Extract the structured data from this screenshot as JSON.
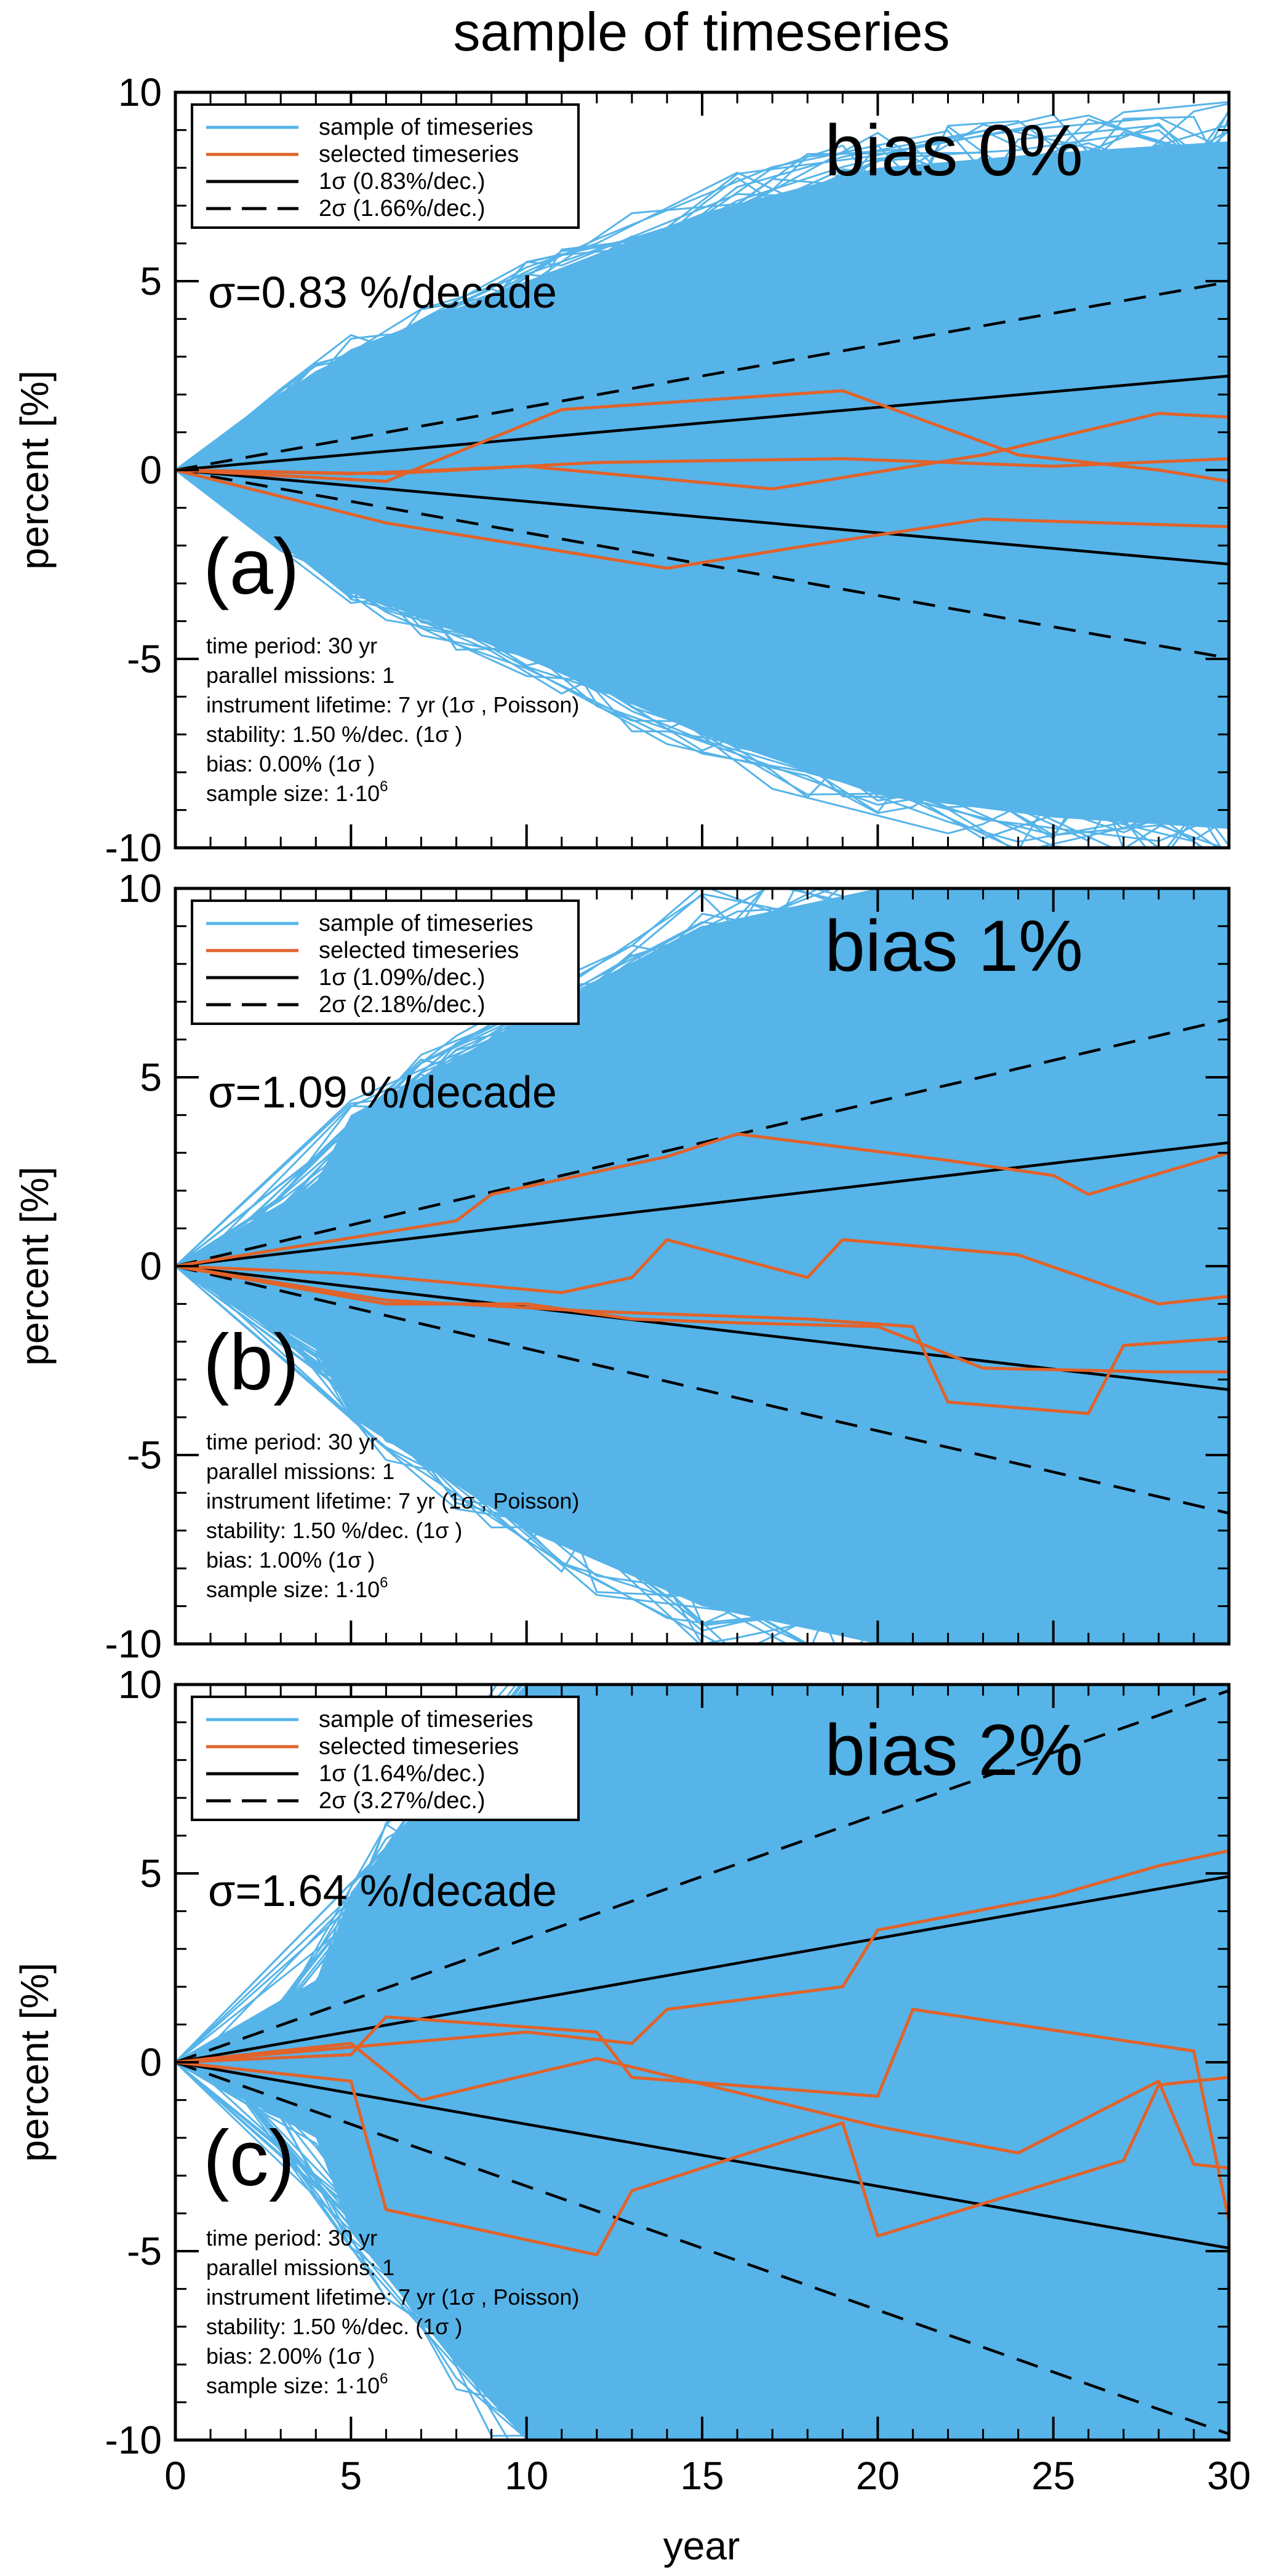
{
  "title": "sample of timeseries",
  "xlabel": "year",
  "colors": {
    "sample": "#56b4e9",
    "selected": "#e1622a",
    "sigma": "#000000",
    "background": "#ffffff"
  },
  "legend": {
    "sample": "sample of timeseries",
    "selected": "selected timeseries"
  },
  "info_labels": {
    "time_period": "time period: 30 yr",
    "parallel_missions": "parallel missions: 1",
    "instrument_lifetime": "instrument lifetime: 7 yr (1σ , Poisson)",
    "stability": "stability: 1.50 %/dec. (1σ )",
    "sample_size_prefix": "sample size: 1·10",
    "sample_size_exp": "6"
  },
  "chart_data": [
    {
      "type": "line",
      "panel_label": "(a)",
      "bias_label": "bias 0%",
      "sigma_label": "σ=0.83 %/decade",
      "bias_info": "bias: 0.00% (1σ )",
      "legend_1sigma": "1σ  (0.83%/dec.)",
      "legend_2sigma": "2σ  (1.66%/dec.)",
      "ylabel": "percent [%]",
      "xlim": [
        0,
        30
      ],
      "ylim": [
        -10,
        10
      ],
      "xticks": [
        0,
        5,
        10,
        15,
        20,
        25,
        30
      ],
      "yticks": [
        -10,
        -5,
        0,
        5,
        10
      ],
      "sigma_slope_per_decade": 0.83,
      "sample_envelope": {
        "x": [
          0,
          5,
          10,
          15,
          20,
          25,
          30
        ],
        "upper": [
          0,
          3.2,
          5.0,
          6.8,
          8.0,
          8.4,
          8.7
        ],
        "lower": [
          0,
          -3.2,
          -5.0,
          -7.0,
          -8.6,
          -9.2,
          -9.5
        ]
      },
      "selected_series": [
        {
          "x": [
            0,
            6,
            11,
            19,
            24,
            28,
            30
          ],
          "y": [
            0,
            -0.3,
            1.6,
            2.1,
            0.4,
            0.0,
            -0.3
          ]
        },
        {
          "x": [
            0,
            5,
            10,
            17,
            23,
            28,
            30
          ],
          "y": [
            0,
            -0.1,
            0.1,
            -0.5,
            0.4,
            1.5,
            1.4
          ]
        },
        {
          "x": [
            0,
            6,
            12,
            19,
            25,
            30
          ],
          "y": [
            0,
            -0.1,
            0.2,
            0.3,
            0.1,
            0.3
          ]
        },
        {
          "x": [
            0,
            6,
            14,
            18,
            23,
            30
          ],
          "y": [
            0,
            -1.4,
            -2.6,
            -2.0,
            -1.3,
            -1.5
          ]
        }
      ]
    },
    {
      "type": "line",
      "panel_label": "(b)",
      "bias_label": "bias 1%",
      "sigma_label": "σ=1.09 %/decade",
      "bias_info": "bias: 1.00% (1σ )",
      "legend_1sigma": "1σ  (1.09%/dec.)",
      "legend_2sigma": "2σ  (2.18%/dec.)",
      "ylabel": "percent [%]",
      "xlim": [
        0,
        30
      ],
      "ylim": [
        -10,
        10
      ],
      "xticks": [
        0,
        5,
        10,
        15,
        20,
        25,
        30
      ],
      "yticks": [
        -10,
        -5,
        0,
        5,
        10
      ],
      "sigma_slope_per_decade": 1.09,
      "sample_envelope": {
        "x": [
          0,
          4,
          5,
          10,
          15,
          20,
          25,
          30
        ],
        "upper": [
          0,
          2.2,
          4.0,
          6.5,
          9.0,
          10,
          10,
          10
        ],
        "lower": [
          0,
          -2.2,
          -4.0,
          -7.0,
          -9.0,
          -10,
          -10,
          -10
        ]
      },
      "selected_series": [
        {
          "x": [
            0,
            8,
            9,
            14,
            16,
            22,
            25,
            26,
            30
          ],
          "y": [
            0,
            1.2,
            1.9,
            2.9,
            3.5,
            2.8,
            2.4,
            1.9,
            3.0
          ]
        },
        {
          "x": [
            0,
            5,
            11,
            13,
            14,
            18,
            19,
            24,
            28,
            30
          ],
          "y": [
            0,
            -0.2,
            -0.7,
            -0.3,
            0.7,
            -0.3,
            0.7,
            0.3,
            -1.0,
            -0.8
          ]
        },
        {
          "x": [
            0,
            6,
            10,
            13,
            16,
            20,
            23,
            28,
            30
          ],
          "y": [
            0,
            -1.0,
            -1.0,
            -1.4,
            -1.5,
            -1.6,
            -2.7,
            -2.8,
            -2.8
          ]
        },
        {
          "x": [
            0,
            6,
            12,
            18,
            21,
            22,
            26,
            27,
            30
          ],
          "y": [
            0,
            -0.9,
            -1.2,
            -1.4,
            -1.6,
            -3.6,
            -3.9,
            -2.1,
            -1.9
          ]
        }
      ]
    },
    {
      "type": "line",
      "panel_label": "(c)",
      "bias_label": "bias 2%",
      "sigma_label": "σ=1.64 %/decade",
      "bias_info": "bias: 2.00% (1σ )",
      "legend_1sigma": "1σ  (1.64%/dec.)",
      "legend_2sigma": "2σ  (3.27%/dec.)",
      "ylabel": "percent [%]",
      "xlim": [
        0,
        30
      ],
      "ylim": [
        -10,
        10
      ],
      "xticks": [
        0,
        5,
        10,
        15,
        20,
        25,
        30
      ],
      "yticks": [
        -10,
        -5,
        0,
        5,
        10
      ],
      "sigma_slope_per_decade": 1.64,
      "sample_envelope": {
        "x": [
          0,
          4,
          5,
          8,
          10,
          15,
          20,
          25,
          30
        ],
        "upper": [
          0,
          2.0,
          4.5,
          8.0,
          10,
          10,
          10,
          10,
          10
        ],
        "lower": [
          0,
          -2.0,
          -4.5,
          -8.0,
          -10,
          -10,
          -10,
          -10,
          -10
        ]
      },
      "selected_series": [
        {
          "x": [
            0,
            10,
            13,
            14,
            19,
            20,
            25,
            28,
            30
          ],
          "y": [
            0,
            0.8,
            0.5,
            1.4,
            2.0,
            3.5,
            4.4,
            5.2,
            5.6
          ]
        },
        {
          "x": [
            0,
            5,
            6,
            12,
            13,
            20,
            21,
            29,
            30
          ],
          "y": [
            0,
            0.2,
            1.2,
            0.8,
            -0.4,
            -0.9,
            1.4,
            0.3,
            -4.2
          ]
        },
        {
          "x": [
            0,
            5,
            7,
            12,
            20,
            24,
            28,
            29,
            30
          ],
          "y": [
            0,
            0.5,
            -1.0,
            0.1,
            -1.7,
            -2.4,
            -0.5,
            -2.7,
            -2.8
          ]
        },
        {
          "x": [
            0,
            5,
            6,
            12,
            13,
            19,
            20,
            27,
            28,
            30
          ],
          "y": [
            0,
            -0.5,
            -3.9,
            -5.1,
            -3.4,
            -1.6,
            -4.6,
            -2.6,
            -0.6,
            -0.4
          ]
        }
      ]
    }
  ]
}
